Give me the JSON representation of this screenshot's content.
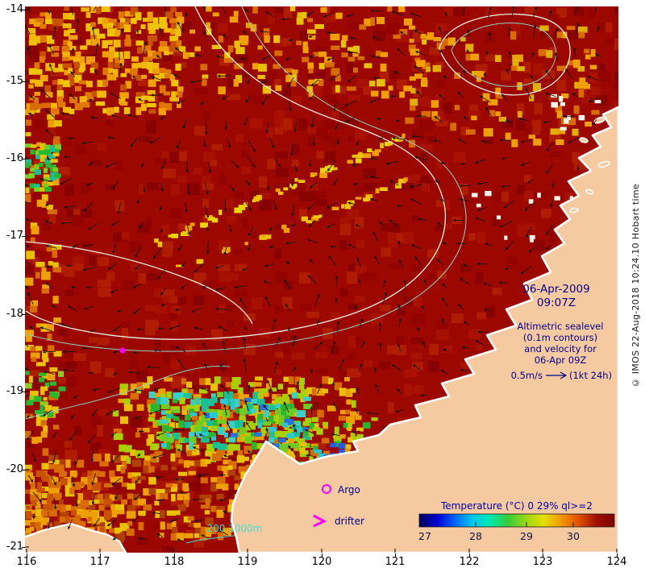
{
  "map": {
    "date": "06-Apr-2009",
    "time": "09:07Z",
    "annotation_lines": [
      "Altimetric sealevel",
      "(0.1m contours)",
      "and velocity for",
      "06-Apr 09Z"
    ],
    "velocity_scale_label": "0.5m/s",
    "velocity_scale_suffix": "(1kt 24h)",
    "depth_legend": "200 1000m",
    "argo_label": "Argo",
    "drifter_label": "drifter"
  },
  "colorbar": {
    "title": "Temperature (°C) 0 29% ql>=2",
    "ticks": [
      "27",
      "28",
      "29",
      "30"
    ],
    "gradient": [
      "#000066",
      "#0000d0",
      "#0064ff",
      "#00c8f0",
      "#00e8b0",
      "#38cc38",
      "#96d818",
      "#e6e000",
      "#f49800",
      "#e05000",
      "#a01000",
      "#7c0400"
    ]
  },
  "axes": {
    "x_ticks": [
      "116",
      "117",
      "118",
      "119",
      "120",
      "121",
      "122",
      "123",
      "124"
    ],
    "y_ticks": [
      "-14",
      "-15",
      "-16",
      "-17",
      "-18",
      "-19",
      "-20",
      "-21"
    ]
  },
  "watermark": "© IMOS 22-Aug-2018 10:24.10 Hobart time",
  "colors": {
    "ocean": "#9c0700",
    "land": "#f6caa0",
    "coastline": "#ffffff",
    "contour_white": "#e9efe7",
    "contour_cyan": "#8fd2c6",
    "marker_magenta": "#ff00ff",
    "text_navy": "#00008b",
    "depth_cyan": "#40e0d0"
  }
}
